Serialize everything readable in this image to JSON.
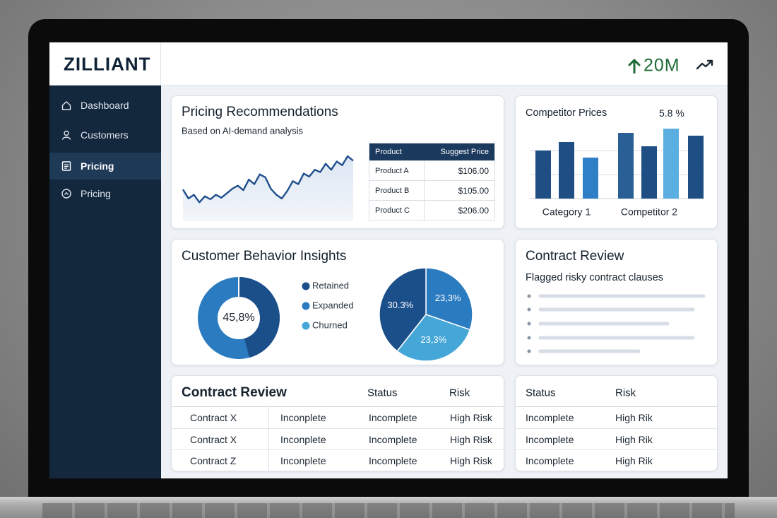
{
  "header": {
    "logo": "ZILLIANT",
    "metric": "20M"
  },
  "sidebar": {
    "items": [
      "Dashboard",
      "Customers",
      "Pricing",
      "Pricing"
    ]
  },
  "pricing_recommendations": {
    "title": "Pricing Recommendations",
    "subtitle": "Based on AI-demand analysis",
    "trend": {
      "type": "line",
      "values": [
        42,
        30,
        35,
        25,
        33,
        29,
        35,
        31,
        37,
        43,
        47,
        41,
        55,
        49,
        62,
        58,
        43,
        35,
        30,
        40,
        53,
        49,
        63,
        59,
        68,
        65,
        76,
        68,
        79,
        74,
        86,
        80
      ],
      "ylim": [
        0,
        100
      ],
      "color": "#1f4e8c"
    },
    "table": {
      "columns": [
        "Product",
        "Suggest Price"
      ],
      "rows": [
        [
          "Product A",
          "$106.00"
        ],
        [
          "Product B",
          "$105.00"
        ],
        [
          "Product C",
          "$206.00"
        ]
      ]
    }
  },
  "competitor_prices": {
    "title": "Competitor Prices",
    "value": "5.8 %",
    "chart": {
      "type": "bar",
      "categories": [
        null,
        "Category 1",
        null,
        null,
        "Competitor 2",
        null,
        null
      ],
      "values": [
        68,
        80,
        58,
        93,
        74,
        99,
        89
      ],
      "colors": [
        "#1f4e85",
        "#1f4e85",
        "#2e7fc6",
        "#2a5f96",
        "#1f4e85",
        "#5aaee0",
        "#1f4e85"
      ],
      "ylim": [
        0,
        100
      ]
    }
  },
  "customer_behavior": {
    "title": "Customer Behavior Insights",
    "donut": {
      "value": 45.8,
      "value_label": "45,8%",
      "colors": [
        "#1b4f8a",
        "#2b7bc0"
      ]
    },
    "legend": [
      {
        "name": "Retained",
        "color": "#1b4f8a"
      },
      {
        "name": "Expanded",
        "color": "#2b7bc0"
      },
      {
        "name": "Churned",
        "color": "#45a6d8"
      }
    ],
    "pie": {
      "type": "pie",
      "slices": [
        {
          "value": 23.3,
          "label": "23,3%",
          "color": "#2b7bc0"
        },
        {
          "value": 23.3,
          "label": "23,3%",
          "color": "#45a6d8"
        },
        {
          "value": 30.3,
          "label": "30.3%",
          "color": "#1b4f8a"
        }
      ]
    }
  },
  "contract_review": {
    "title": "Contract Review",
    "subtitle": "Flagged risky contract clauses"
  },
  "contracts_table": {
    "title": "Contract Review",
    "columns": [
      "Status",
      "Risk"
    ],
    "rows": [
      [
        "Contract X",
        "Inconplete",
        "Incomplete",
        "High Risk"
      ],
      [
        "Contract X",
        "Inconplete",
        "Incomplete",
        "High Risk"
      ],
      [
        "Contract Z",
        "Inconplete",
        "Incomplete",
        "High Risk"
      ]
    ]
  },
  "status_table": {
    "columns": [
      "Status",
      "Risk"
    ],
    "rows": [
      [
        "Incomplete",
        "High Rik"
      ],
      [
        "Incomplete",
        "High Rik"
      ],
      [
        "Incomplete",
        "High Rik"
      ]
    ]
  }
}
